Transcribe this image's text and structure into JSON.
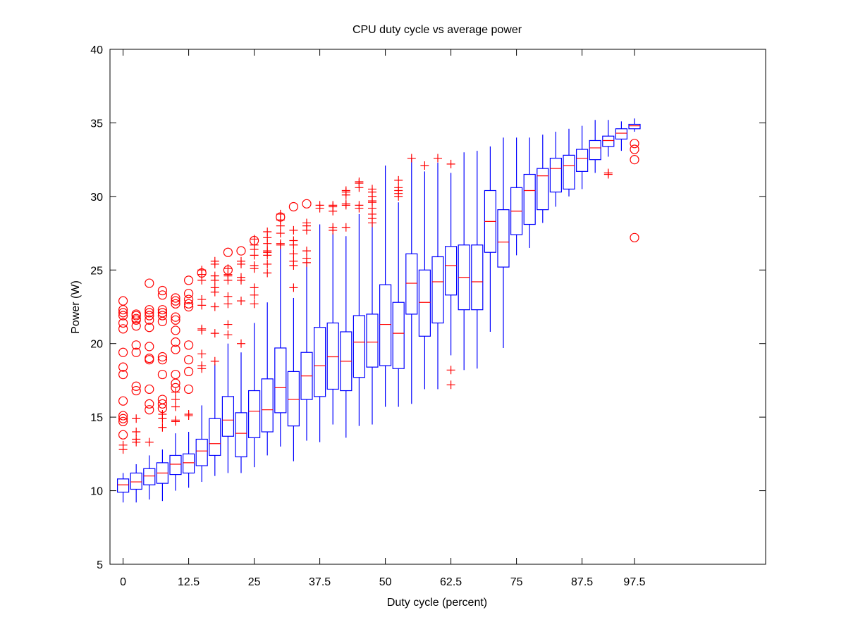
{
  "chart_data": {
    "type": "box",
    "title": "CPU duty cycle vs average power",
    "xlabel": "Duty cycle (percent)",
    "ylabel": "Power (W)",
    "ylim": [
      5,
      40
    ],
    "y_ticks": [
      5,
      10,
      15,
      20,
      25,
      30,
      35,
      40
    ],
    "xlim": [
      -2.5,
      122.5
    ],
    "x_ticks": [
      0,
      12.5,
      25,
      37.5,
      50,
      62.5,
      75,
      87.5,
      97.5
    ],
    "x_tick_labels": [
      "0",
      "12.5",
      "25",
      "37.5",
      "50",
      "62.5",
      "75",
      "87.5",
      "97.5"
    ],
    "box_color": "#0000ff",
    "median_color": "#ff0000",
    "outlier_color": "#ff0000",
    "boxes": [
      {
        "x": 0,
        "whisker_low": 9.2,
        "q1": 9.9,
        "median": 10.4,
        "q3": 10.8,
        "whisker_high": 11.2
      },
      {
        "x": 2.5,
        "whisker_low": 9.2,
        "q1": 10.1,
        "median": 10.6,
        "q3": 11.2,
        "whisker_high": 11.8
      },
      {
        "x": 5,
        "whisker_low": 9.4,
        "q1": 10.4,
        "median": 11.0,
        "q3": 11.5,
        "whisker_high": 12.4
      },
      {
        "x": 7.5,
        "whisker_low": 9.3,
        "q1": 10.5,
        "median": 11.2,
        "q3": 11.9,
        "whisker_high": 12.8
      },
      {
        "x": 10,
        "whisker_low": 10.0,
        "q1": 11.1,
        "median": 11.8,
        "q3": 12.4,
        "whisker_high": 13.9
      },
      {
        "x": 12.5,
        "whisker_low": 10.2,
        "q1": 11.2,
        "median": 11.9,
        "q3": 12.5,
        "whisker_high": 14.0
      },
      {
        "x": 15,
        "whisker_low": 10.6,
        "q1": 11.7,
        "median": 12.7,
        "q3": 13.5,
        "whisker_high": 15.8
      },
      {
        "x": 17.5,
        "whisker_low": 11.0,
        "q1": 12.4,
        "median": 13.2,
        "q3": 14.9,
        "whisker_high": 18.6
      },
      {
        "x": 20,
        "whisker_low": 11.2,
        "q1": 13.7,
        "median": 14.8,
        "q3": 16.4,
        "whisker_high": 20.0
      },
      {
        "x": 22.5,
        "whisker_low": 11.2,
        "q1": 12.3,
        "median": 13.9,
        "q3": 15.3,
        "whisker_high": 19.4
      },
      {
        "x": 25,
        "whisker_low": 11.6,
        "q1": 13.6,
        "median": 15.4,
        "q3": 16.8,
        "whisker_high": 21.4
      },
      {
        "x": 27.5,
        "whisker_low": 12.4,
        "q1": 14.0,
        "median": 15.5,
        "q3": 17.6,
        "whisker_high": 22.8
      },
      {
        "x": 30,
        "whisker_low": 13.0,
        "q1": 15.3,
        "median": 17.0,
        "q3": 19.7,
        "whisker_high": 26.9
      },
      {
        "x": 32.5,
        "whisker_low": 12.0,
        "q1": 14.4,
        "median": 16.2,
        "q3": 18.1,
        "whisker_high": 23.1
      },
      {
        "x": 35,
        "whisker_low": 13.4,
        "q1": 16.2,
        "median": 17.8,
        "q3": 19.4,
        "whisker_high": 25.6
      },
      {
        "x": 37.5,
        "whisker_low": 13.3,
        "q1": 16.4,
        "median": 18.5,
        "q3": 21.1,
        "whisker_high": 28.1
      },
      {
        "x": 40,
        "whisker_low": 14.5,
        "q1": 16.9,
        "median": 19.1,
        "q3": 21.4,
        "whisker_high": 27.5
      },
      {
        "x": 42.5,
        "whisker_low": 13.6,
        "q1": 16.8,
        "median": 18.8,
        "q3": 20.8,
        "whisker_high": 27.3
      },
      {
        "x": 45,
        "whisker_low": 14.4,
        "q1": 17.7,
        "median": 20.1,
        "q3": 21.9,
        "whisker_high": 28.8
      },
      {
        "x": 47.5,
        "whisker_low": 14.5,
        "q1": 18.4,
        "median": 20.1,
        "q3": 22.0,
        "whisker_high": 28.2
      },
      {
        "x": 50,
        "whisker_low": 15.7,
        "q1": 18.5,
        "median": 21.3,
        "q3": 24.0,
        "whisker_high": 32.1
      },
      {
        "x": 52.5,
        "whisker_low": 15.7,
        "q1": 18.3,
        "median": 20.7,
        "q3": 22.8,
        "whisker_high": 29.6
      },
      {
        "x": 55,
        "whisker_low": 15.9,
        "q1": 22.0,
        "median": 24.1,
        "q3": 26.1,
        "whisker_high": 32.6
      },
      {
        "x": 57.5,
        "whisker_low": 16.9,
        "q1": 20.5,
        "median": 22.8,
        "q3": 25.0,
        "whisker_high": 31.7
      },
      {
        "x": 60,
        "whisker_low": 16.9,
        "q1": 21.4,
        "median": 24.2,
        "q3": 25.9,
        "whisker_high": 32.3
      },
      {
        "x": 62.5,
        "whisker_low": 19.2,
        "q1": 23.3,
        "median": 25.3,
        "q3": 26.6,
        "whisker_high": 31.6
      },
      {
        "x": 65,
        "whisker_low": 18.2,
        "q1": 22.3,
        "median": 24.5,
        "q3": 26.7,
        "whisker_high": 33.0
      },
      {
        "x": 67.5,
        "whisker_low": 18.3,
        "q1": 22.3,
        "median": 24.2,
        "q3": 26.7,
        "whisker_high": 33.1
      },
      {
        "x": 70,
        "whisker_low": 20.8,
        "q1": 26.2,
        "median": 28.3,
        "q3": 30.4,
        "whisker_high": 33.4
      },
      {
        "x": 72.5,
        "whisker_low": 19.7,
        "q1": 25.2,
        "median": 26.9,
        "q3": 29.1,
        "whisker_high": 34.0
      },
      {
        "x": 75,
        "whisker_low": 26.0,
        "q1": 27.4,
        "median": 29.0,
        "q3": 30.6,
        "whisker_high": 34.0
      },
      {
        "x": 77.5,
        "whisker_low": 26.5,
        "q1": 28.1,
        "median": 30.4,
        "q3": 31.5,
        "whisker_high": 34.0
      },
      {
        "x": 80,
        "whisker_low": 28.2,
        "q1": 29.1,
        "median": 31.4,
        "q3": 31.9,
        "whisker_high": 34.2
      },
      {
        "x": 82.5,
        "whisker_low": 29.3,
        "q1": 30.3,
        "median": 31.9,
        "q3": 32.6,
        "whisker_high": 34.4
      },
      {
        "x": 85,
        "whisker_low": 30.0,
        "q1": 30.5,
        "median": 32.1,
        "q3": 32.8,
        "whisker_high": 34.6
      },
      {
        "x": 87.5,
        "whisker_low": 30.5,
        "q1": 31.7,
        "median": 32.6,
        "q3": 33.2,
        "whisker_high": 34.8
      },
      {
        "x": 90,
        "whisker_low": 31.6,
        "q1": 32.5,
        "median": 33.3,
        "q3": 33.8,
        "whisker_high": 35.2
      },
      {
        "x": 92.5,
        "whisker_low": 32.7,
        "q1": 33.4,
        "median": 33.8,
        "q3": 34.1,
        "whisker_high": 35.2
      },
      {
        "x": 95,
        "whisker_low": 33.1,
        "q1": 33.9,
        "median": 34.3,
        "q3": 34.6,
        "whisker_high": 35.1
      },
      {
        "x": 97.5,
        "whisker_low": 34.4,
        "q1": 34.6,
        "median": 34.8,
        "q3": 34.9,
        "whisker_high": 35.3
      }
    ],
    "outliers_circle": [
      {
        "x": 0,
        "y": [
          13.8,
          14.7,
          14.9,
          15.1,
          16.1,
          17.9,
          18.4,
          19.4,
          21.0,
          21.4,
          21.9,
          22.1,
          22.3,
          22.9
        ]
      },
      {
        "x": 2.5,
        "y": [
          16.8,
          17.1,
          19.4,
          19.9,
          21.2,
          21.6,
          21.7,
          21.9,
          22.0
        ]
      },
      {
        "x": 5,
        "y": [
          15.5,
          15.9,
          16.9,
          18.9,
          19.0,
          19.8,
          21.1,
          21.6,
          21.9,
          22.1,
          22.3,
          24.1
        ]
      },
      {
        "x": 7.5,
        "y": [
          15.6,
          15.9,
          16.2,
          17.9,
          18.9,
          19.1,
          21.5,
          21.9,
          22.1,
          22.3,
          23.3,
          23.6
        ]
      },
      {
        "x": 10,
        "y": [
          17.0,
          17.3,
          17.9,
          19.6,
          20.1,
          20.9,
          21.6,
          21.8,
          22.7,
          22.9,
          23.1
        ]
      },
      {
        "x": 12.5,
        "y": [
          16.9,
          18.1,
          18.9,
          19.9,
          22.5,
          22.7,
          23.0,
          23.4,
          24.3
        ]
      }
    ],
    "outliers_plus": [
      {
        "x": 0,
        "y": [
          12.8,
          13.1
        ]
      },
      {
        "x": 2.5,
        "y": [
          13.3,
          13.5,
          14.0,
          14.9
        ]
      },
      {
        "x": 5,
        "y": [
          13.3
        ]
      },
      {
        "x": 7.5,
        "y": [
          14.3,
          14.9,
          15.2
        ]
      },
      {
        "x": 10,
        "y": [
          14.7,
          14.8,
          15.7,
          16.2,
          16.7
        ]
      },
      {
        "x": 12.5,
        "y": [
          15.1,
          15.2
        ]
      },
      {
        "x": 15,
        "y": [
          18.3,
          18.5,
          19.3,
          20.9,
          21.0,
          22.6,
          23.0,
          24.3,
          24.7,
          25.0
        ]
      },
      {
        "x": 17.5,
        "y": [
          18.8,
          20.7,
          22.5,
          23.5,
          23.8,
          24.3,
          24.6,
          25.4,
          25.6
        ]
      },
      {
        "x": 20,
        "y": [
          20.6,
          21.3,
          22.7,
          23.2,
          24.3,
          24.6,
          24.7,
          25.1
        ]
      },
      {
        "x": 22.5,
        "y": [
          20.0,
          22.9,
          24.3,
          24.5,
          25.4,
          25.6
        ]
      },
      {
        "x": 25,
        "y": [
          22.7,
          23.3,
          23.8,
          25.1,
          25.3,
          26.0,
          26.4,
          26.7,
          27.1
        ]
      },
      {
        "x": 27.5,
        "y": [
          24.8,
          25.4,
          26.0,
          26.2,
          26.3,
          26.8,
          27.2,
          27.6
        ]
      },
      {
        "x": 30,
        "y": [
          26.7,
          26.8,
          27.5,
          28.0,
          28.4,
          28.8
        ]
      },
      {
        "x": 32.5,
        "y": [
          23.8,
          25.3,
          25.6,
          26.1,
          26.7,
          27.0,
          27.7
        ]
      },
      {
        "x": 35,
        "y": [
          25.5,
          25.8,
          26.3,
          27.7,
          28.0,
          28.2
        ]
      },
      {
        "x": 37.5,
        "y": [
          29.2,
          29.4
        ]
      },
      {
        "x": 40,
        "y": [
          27.7,
          27.9,
          29.0,
          29.3,
          29.4
        ]
      },
      {
        "x": 42.5,
        "y": [
          27.9,
          29.4,
          29.5,
          30.1,
          30.3,
          30.4
        ]
      },
      {
        "x": 45,
        "y": [
          29.2,
          29.4,
          30.6,
          30.9,
          31.0
        ]
      },
      {
        "x": 47.5,
        "y": [
          28.2,
          28.5,
          28.8,
          29.2,
          29.6,
          29.7,
          30.0,
          30.3,
          30.5
        ]
      },
      {
        "x": 52.5,
        "y": [
          30.0,
          30.2,
          30.4,
          30.6,
          31.1
        ]
      },
      {
        "x": 55,
        "y": [
          32.6
        ]
      },
      {
        "x": 57.5,
        "y": [
          32.1
        ]
      },
      {
        "x": 60,
        "y": [
          32.6
        ]
      },
      {
        "x": 62.5,
        "y": [
          17.2,
          18.2,
          32.2
        ]
      },
      {
        "x": 92.5,
        "y": [
          31.5,
          31.6
        ]
      }
    ],
    "outliers_circle_high": [
      {
        "x": 15,
        "y": [
          24.8
        ]
      },
      {
        "x": 20,
        "y": [
          26.2,
          25.0
        ]
      },
      {
        "x": 22.5,
        "y": [
          26.3
        ]
      },
      {
        "x": 25,
        "y": [
          27.0
        ]
      },
      {
        "x": 30,
        "y": [
          28.6
        ]
      },
      {
        "x": 32.5,
        "y": [
          29.3
        ]
      },
      {
        "x": 35,
        "y": [
          29.5
        ]
      },
      {
        "x": 97.5,
        "y": [
          27.2,
          32.5,
          33.2,
          33.6
        ]
      }
    ],
    "grid": false
  }
}
